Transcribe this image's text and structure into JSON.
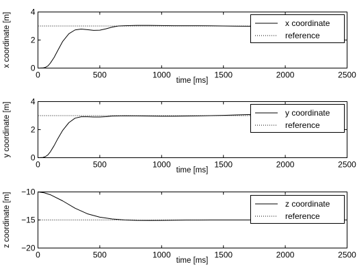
{
  "chart_data": [
    {
      "type": "line",
      "xlabel": "time [ms]",
      "ylabel": "x coordinate [m]",
      "xlim": [
        0,
        2500
      ],
      "ylim": [
        0,
        4
      ],
      "xticks": [
        "0",
        "500",
        "1000",
        "1500",
        "2000",
        "2500"
      ],
      "yticks": [
        "0",
        "2",
        "4"
      ],
      "ytick_values": [
        0,
        2,
        4
      ],
      "grid": false,
      "legend_position": "top-right",
      "series": [
        {
          "name": "x coordinate",
          "style": "solid",
          "x": [
            0,
            40,
            60,
            80,
            100,
            130,
            160,
            200,
            250,
            300,
            350,
            400,
            450,
            500,
            550,
            600,
            650,
            700,
            800,
            900,
            1000,
            1100,
            1200,
            1300,
            1400,
            1500,
            1600,
            1700,
            1800
          ],
          "y": [
            0,
            0.01,
            0.05,
            0.15,
            0.35,
            0.75,
            1.25,
            1.9,
            2.45,
            2.72,
            2.78,
            2.74,
            2.69,
            2.7,
            2.8,
            2.92,
            3.0,
            3.02,
            3.04,
            3.04,
            3.03,
            3.02,
            3.02,
            3.02,
            3.01,
            3.0,
            2.99,
            2.98,
            2.98
          ]
        },
        {
          "name": "reference",
          "style": "dotted",
          "x": [
            0,
            1800
          ],
          "y": [
            3,
            3
          ]
        }
      ]
    },
    {
      "type": "line",
      "xlabel": "time [ms]",
      "ylabel": "y coordinate [m]",
      "xlim": [
        0,
        2500
      ],
      "ylim": [
        0,
        4
      ],
      "xticks": [
        "0",
        "500",
        "1000",
        "1500",
        "2000",
        "2500"
      ],
      "yticks": [
        "0",
        "2",
        "4"
      ],
      "ytick_values": [
        0,
        2,
        4
      ],
      "grid": false,
      "legend_position": "top-right",
      "series": [
        {
          "name": "y coordinate",
          "style": "solid",
          "x": [
            0,
            40,
            60,
            80,
            100,
            130,
            160,
            200,
            250,
            300,
            350,
            400,
            450,
            500,
            550,
            600,
            700,
            800,
            900,
            1000,
            1100,
            1200,
            1300,
            1400,
            1500,
            1600,
            1700,
            1800
          ],
          "y": [
            0,
            0.02,
            0.08,
            0.2,
            0.42,
            0.85,
            1.35,
            1.95,
            2.5,
            2.82,
            2.92,
            2.92,
            2.9,
            2.9,
            2.93,
            2.97,
            2.99,
            2.98,
            2.97,
            2.96,
            2.96,
            2.97,
            2.98,
            3.0,
            3.02,
            3.05,
            3.07,
            3.08
          ]
        },
        {
          "name": "reference",
          "style": "dotted",
          "x": [
            0,
            1800
          ],
          "y": [
            3,
            3
          ]
        }
      ]
    },
    {
      "type": "line",
      "xlabel": "time [ms]",
      "ylabel": "z coordinate [m]",
      "xlim": [
        0,
        2500
      ],
      "ylim": [
        -20,
        -10
      ],
      "xticks": [
        "0",
        "500",
        "1000",
        "1500",
        "2000",
        "2500"
      ],
      "yticks": [
        "−10",
        "−15",
        "−20"
      ],
      "ytick_values": [
        -10,
        -15,
        -20
      ],
      "grid": false,
      "legend_position": "top-right",
      "series": [
        {
          "name": "z coordinate",
          "style": "solid",
          "x": [
            0,
            50,
            100,
            200,
            300,
            400,
            500,
            600,
            700,
            800,
            900,
            1000,
            1100,
            1200,
            1300,
            1400,
            1500,
            1600,
            1700,
            1800
          ],
          "y": [
            -10,
            -10.15,
            -10.5,
            -11.6,
            -12.9,
            -13.9,
            -14.5,
            -14.82,
            -15.0,
            -15.07,
            -15.09,
            -15.07,
            -15.04,
            -15.02,
            -15.01,
            -15.0,
            -15.0,
            -15.0,
            -15.0,
            -14.99
          ]
        },
        {
          "name": "reference",
          "style": "dotted",
          "x": [
            0,
            1800
          ],
          "y": [
            -15,
            -15
          ]
        }
      ]
    }
  ]
}
